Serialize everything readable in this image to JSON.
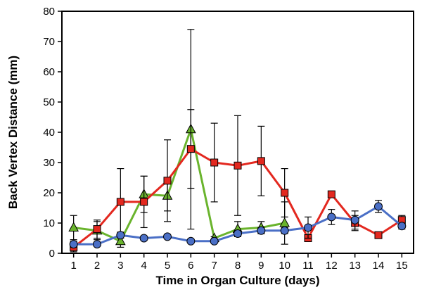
{
  "chart_data": {
    "type": "line",
    "title": "",
    "xlabel": "Time in Organ Culture (days)",
    "ylabel": "Back Vertex Distance (mm)",
    "xlim": [
      0.5,
      15.5
    ],
    "ylim": [
      0,
      80
    ],
    "x_ticks": [
      1,
      2,
      3,
      4,
      5,
      6,
      7,
      8,
      9,
      10,
      11,
      12,
      13,
      14,
      15
    ],
    "y_ticks": [
      0,
      10,
      20,
      30,
      40,
      50,
      60,
      70,
      80
    ],
    "grid": false,
    "legend": "none",
    "series": [
      {
        "marker": "triangle",
        "color": "#6ab42d",
        "x": [
          1,
          2,
          3,
          4,
          5,
          6,
          7,
          8,
          9,
          10
        ],
        "y": [
          8.5,
          7.5,
          4,
          19.5,
          19,
          41,
          5,
          8,
          8.5,
          10
        ],
        "err": [
          4,
          3,
          2,
          6,
          5,
          33,
          0.5,
          2.5,
          2,
          7
        ]
      },
      {
        "marker": "square",
        "color": "#e3281f",
        "x": [
          1,
          2,
          3,
          4,
          5,
          6,
          7,
          8,
          9,
          10,
          11,
          12,
          13,
          14,
          15
        ],
        "y": [
          2,
          8,
          17,
          17,
          24,
          34.5,
          30,
          29,
          30.5,
          20,
          5,
          19.5,
          10,
          6,
          11
        ],
        "err": [
          1.5,
          3,
          11,
          8.5,
          13.5,
          13,
          13,
          16.5,
          11.5,
          8,
          1,
          1,
          2.5,
          1,
          1.5
        ]
      },
      {
        "marker": "circle",
        "color": "#4a6fc6",
        "x": [
          1,
          2,
          3,
          4,
          5,
          6,
          7,
          8,
          9,
          10,
          11,
          12,
          13,
          14,
          15
        ],
        "y": [
          3,
          3,
          6,
          5,
          5.5,
          4,
          4,
          6.5,
          7.5,
          7.5,
          8.5,
          12,
          11,
          15.5,
          9
        ],
        "err": [
          1,
          0.5,
          1,
          0.5,
          0.5,
          0.5,
          0.5,
          1,
          1,
          1,
          3.5,
          2.5,
          3,
          2,
          1
        ]
      }
    ]
  }
}
